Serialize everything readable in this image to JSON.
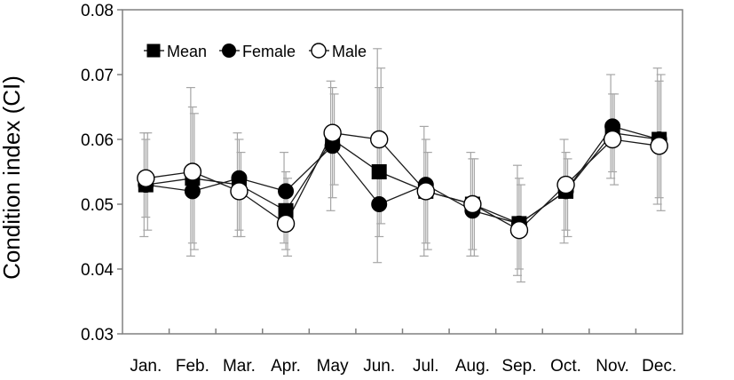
{
  "chart_data": {
    "type": "line",
    "title": "",
    "xlabel": "",
    "ylabel": "Condition index (CI)",
    "categories": [
      "Jan.",
      "Feb.",
      "Mar.",
      "Apr.",
      "May",
      "Jun.",
      "Jul.",
      "Aug.",
      "Sep.",
      "Oct.",
      "Nov.",
      "Dec."
    ],
    "ylim": [
      0.03,
      0.08
    ],
    "yticks": [
      "0.03",
      "0.04",
      "0.05",
      "0.06",
      "0.07",
      "0.08"
    ],
    "grid": false,
    "legend_position": "top-left",
    "series": [
      {
        "name": "Mean",
        "marker": "square",
        "values": [
          0.053,
          0.054,
          0.053,
          0.049,
          0.06,
          0.055,
          0.052,
          0.05,
          0.047,
          0.052,
          0.061,
          0.06
        ],
        "err_low": [
          0.048,
          0.044,
          0.046,
          0.043,
          0.051,
          0.045,
          0.044,
          0.043,
          0.04,
          0.046,
          0.055,
          0.051
        ],
        "err_high": [
          0.06,
          0.065,
          0.06,
          0.055,
          0.068,
          0.068,
          0.06,
          0.057,
          0.054,
          0.058,
          0.067,
          0.069
        ]
      },
      {
        "name": "Female",
        "marker": "filled-circle",
        "values": [
          0.053,
          0.052,
          0.054,
          0.052,
          0.059,
          0.05,
          0.053,
          0.049,
          0.047,
          0.052,
          0.062,
          0.06
        ],
        "err_low": [
          0.045,
          0.042,
          0.045,
          0.044,
          0.049,
          0.041,
          0.042,
          0.042,
          0.039,
          0.044,
          0.054,
          0.05
        ],
        "err_high": [
          0.061,
          0.068,
          0.061,
          0.058,
          0.069,
          0.074,
          0.062,
          0.058,
          0.056,
          0.06,
          0.07,
          0.071
        ]
      },
      {
        "name": "Male",
        "marker": "open-circle",
        "values": [
          0.054,
          0.055,
          0.052,
          0.047,
          0.061,
          0.06,
          0.052,
          0.05,
          0.046,
          0.053,
          0.06,
          0.059
        ],
        "err_low": [
          0.046,
          0.043,
          0.045,
          0.042,
          0.053,
          0.047,
          0.043,
          0.042,
          0.038,
          0.045,
          0.053,
          0.049
        ],
        "err_high": [
          0.061,
          0.064,
          0.058,
          0.054,
          0.067,
          0.071,
          0.058,
          0.057,
          0.053,
          0.057,
          0.067,
          0.07
        ]
      }
    ]
  }
}
